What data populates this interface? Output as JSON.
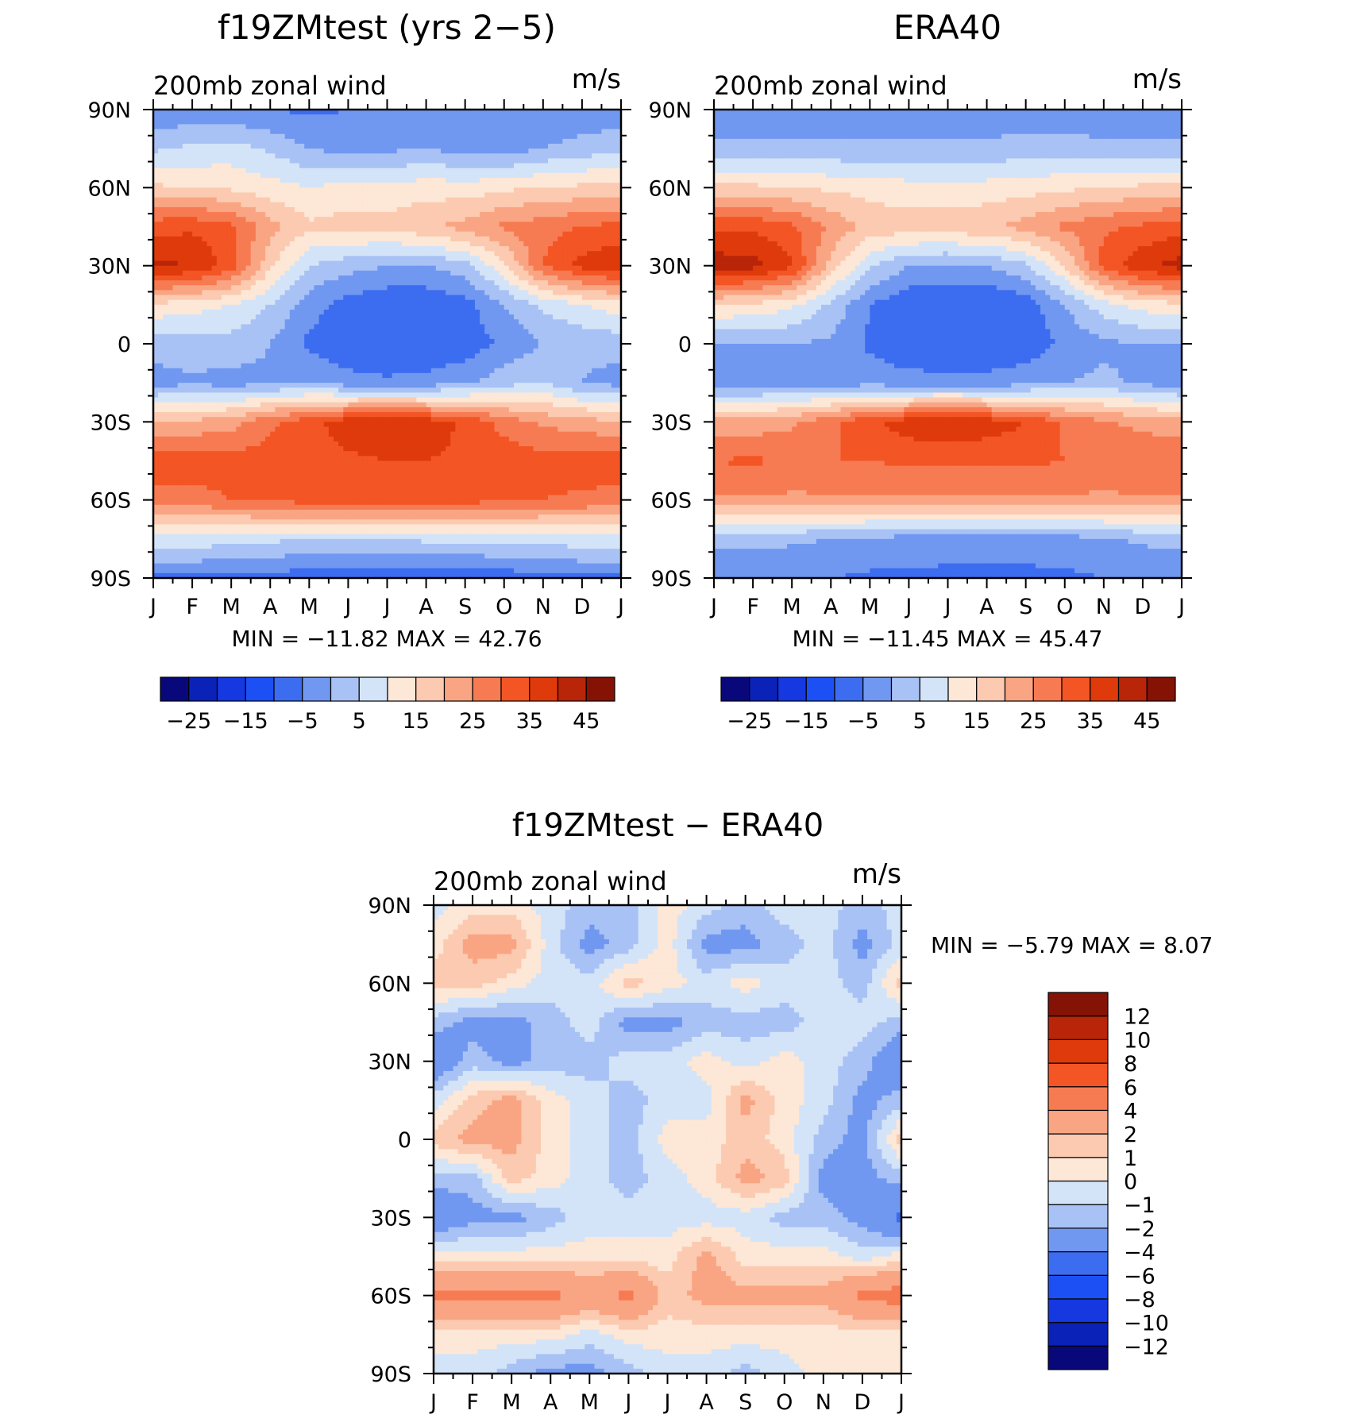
{
  "chart_data": [
    {
      "type": "heatmap",
      "title": "f19ZMtest (yrs 2−5)",
      "left_string": "200mb zonal wind",
      "right_string": "m/s",
      "x_ticks": [
        "J",
        "F",
        "M",
        "A",
        "M",
        "J",
        "J",
        "A",
        "S",
        "O",
        "N",
        "D",
        "J"
      ],
      "y_ticks": [
        "90N",
        "60N",
        "30N",
        "0",
        "30S",
        "60S",
        "90S"
      ],
      "ylim": [
        -90,
        90
      ],
      "stats": {
        "min_label": "MIN =",
        "min": "−11.82",
        "max_label": "MAX =",
        "max": "42.76"
      },
      "colorbar": {
        "orientation": "horizontal",
        "levels": [
          -30,
          -25,
          -20,
          -15,
          -10,
          -5,
          0,
          5,
          10,
          15,
          20,
          25,
          30,
          35,
          40,
          45
        ],
        "tick_labels": [
          "−25",
          "−15",
          "−5",
          "5",
          "15",
          "25",
          "35",
          "45"
        ],
        "colors": [
          "#08087a",
          "#0a22b8",
          "#1538e0",
          "#1c50f5",
          "#3c6cf0",
          "#7198f0",
          "#a9c2f5",
          "#d4e4f8",
          "#fde7d6",
          "#fccab0",
          "#f9a583",
          "#f77b52",
          "#f35524",
          "#df3a0b",
          "#b82508",
          "#841205"
        ]
      },
      "grid_months": [
        "J",
        "F",
        "M",
        "A",
        "M",
        "J",
        "J",
        "A",
        "S",
        "O",
        "N",
        "D",
        "J"
      ],
      "grid_lats": [
        90,
        75,
        60,
        45,
        30,
        15,
        0,
        -15,
        -30,
        -45,
        -60,
        -75,
        -90
      ],
      "z_rows": [
        [
          -4,
          -4,
          -4,
          -5,
          -6,
          -5,
          -5,
          -5,
          -5,
          -4,
          -4,
          -4,
          -4
        ],
        [
          4,
          6,
          7,
          4,
          0,
          -2,
          -1,
          0,
          -2,
          -3,
          0,
          2,
          4
        ],
        [
          16,
          15,
          14,
          12,
          10,
          12,
          11,
          13,
          12,
          14,
          15,
          16,
          16
        ],
        [
          33,
          34,
          31,
          22,
          16,
          17,
          17,
          19,
          22,
          26,
          28,
          30,
          32
        ],
        [
          41,
          40,
          33,
          16,
          5,
          2,
          0,
          0,
          3,
          14,
          30,
          37,
          39
        ],
        [
          14,
          12,
          10,
          5,
          -3,
          -7,
          -9,
          -9,
          -7,
          0,
          6,
          10,
          13
        ],
        [
          2,
          3,
          3,
          0,
          -6,
          -9,
          -10,
          -10,
          -8,
          -4,
          0,
          1,
          2
        ],
        [
          -2,
          -1,
          -2,
          -1,
          0,
          -3,
          -4,
          -3,
          -1,
          3,
          5,
          0,
          -2
        ],
        [
          20,
          21,
          23,
          29,
          33,
          38,
          40,
          38,
          34,
          28,
          24,
          22,
          20
        ],
        [
          33,
          33,
          32,
          32,
          33,
          34,
          35,
          35,
          34,
          33,
          32,
          33,
          33
        ],
        [
          28,
          28,
          30,
          31,
          32,
          32,
          32,
          32,
          32,
          31,
          30,
          29,
          28
        ],
        [
          8,
          8,
          7,
          6,
          5,
          5,
          5,
          6,
          6,
          7,
          7,
          8,
          8
        ],
        [
          -6,
          -6,
          -6,
          -7,
          -8,
          -8,
          -9,
          -9,
          -9,
          -8,
          -7,
          -6,
          -6
        ]
      ]
    },
    {
      "type": "heatmap",
      "title": "ERA40",
      "left_string": "200mb zonal wind",
      "right_string": "m/s",
      "x_ticks": [
        "J",
        "F",
        "M",
        "A",
        "M",
        "J",
        "J",
        "A",
        "S",
        "O",
        "N",
        "D",
        "J"
      ],
      "y_ticks": [
        "90N",
        "60N",
        "30N",
        "0",
        "30S",
        "60S",
        "90S"
      ],
      "ylim": [
        -90,
        90
      ],
      "stats": {
        "min_label": "MIN =",
        "min": "−11.45",
        "max_label": "MAX =",
        "max": "45.47"
      },
      "colorbar": {
        "orientation": "horizontal",
        "levels": [
          -30,
          -25,
          -20,
          -15,
          -10,
          -5,
          0,
          5,
          10,
          15,
          20,
          25,
          30,
          35,
          40,
          45
        ],
        "tick_labels": [
          "−25",
          "−15",
          "−5",
          "5",
          "15",
          "25",
          "35",
          "45"
        ],
        "colors": [
          "#08087a",
          "#0a22b8",
          "#1538e0",
          "#1c50f5",
          "#3c6cf0",
          "#7198f0",
          "#a9c2f5",
          "#d4e4f8",
          "#fde7d6",
          "#fccab0",
          "#f9a583",
          "#f77b52",
          "#f35524",
          "#df3a0b",
          "#b82508",
          "#841205"
        ]
      },
      "grid_months": [
        "J",
        "F",
        "M",
        "A",
        "M",
        "J",
        "J",
        "A",
        "S",
        "O",
        "N",
        "D",
        "J"
      ],
      "grid_lats": [
        90,
        75,
        60,
        45,
        30,
        15,
        0,
        -15,
        -30,
        -45,
        -60,
        -75,
        -90
      ],
      "z_rows": [
        [
          -3,
          -3,
          -3,
          -3,
          -3,
          -3,
          -3,
          -3,
          -3,
          -3,
          -3,
          -3,
          -3
        ],
        [
          1,
          1,
          1,
          1,
          1,
          1,
          1,
          1,
          2,
          2,
          1,
          1,
          1
        ],
        [
          16,
          16,
          15,
          14,
          13,
          12,
          12,
          12,
          13,
          14,
          15,
          16,
          16
        ],
        [
          34,
          34,
          31,
          24,
          18,
          18,
          18,
          19,
          22,
          26,
          29,
          31,
          33
        ],
        [
          43,
          42,
          36,
          18,
          6,
          0,
          -1,
          0,
          4,
          15,
          32,
          39,
          42
        ],
        [
          15,
          14,
          11,
          4,
          -5,
          -9,
          -10,
          -10,
          -8,
          0,
          8,
          12,
          14
        ],
        [
          0,
          0,
          0,
          -1,
          -6,
          -9,
          -10,
          -10,
          -8,
          -4,
          -1,
          0,
          0
        ],
        [
          -3,
          -3,
          -3,
          -3,
          -2,
          -3,
          -3,
          -3,
          -2,
          0,
          1,
          -1,
          -3
        ],
        [
          22,
          22,
          24,
          29,
          34,
          38,
          39,
          38,
          35,
          29,
          26,
          23,
          22
        ],
        [
          30,
          31,
          29,
          30,
          30,
          31,
          31,
          31,
          31,
          30,
          29,
          30,
          30
        ],
        [
          24,
          24,
          24,
          24,
          24,
          24,
          24,
          24,
          24,
          24,
          24,
          24,
          24
        ],
        [
          2,
          2,
          1,
          0,
          -1,
          -2,
          -3,
          -3,
          -3,
          -2,
          -1,
          1,
          2
        ],
        [
          -5,
          -5,
          -5,
          -5,
          -6,
          -6,
          -6,
          -6,
          -6,
          -6,
          -5,
          -5,
          -5
        ]
      ]
    },
    {
      "type": "heatmap",
      "title": "f19ZMtest − ERA40",
      "left_string": "200mb zonal wind",
      "right_string": "m/s",
      "x_ticks": [
        "J",
        "F",
        "M",
        "A",
        "M",
        "J",
        "J",
        "A",
        "S",
        "O",
        "N",
        "D",
        "J"
      ],
      "y_ticks": [
        "90N",
        "60N",
        "30N",
        "0",
        "30S",
        "60S",
        "90S"
      ],
      "ylim": [
        -90,
        90
      ],
      "stats": {
        "min_label": "MIN =",
        "min": "−5.79",
        "max_label": "MAX =",
        "max": "8.07"
      },
      "colorbar": {
        "orientation": "vertical",
        "levels": [
          -14,
          -12,
          -10,
          -8,
          -6,
          -4,
          -2,
          -1,
          0,
          1,
          2,
          4,
          6,
          8,
          10,
          12,
          14
        ],
        "tick_labels": [
          "12",
          "10",
          "8",
          "6",
          "4",
          "2",
          "1",
          "0",
          "−1",
          "−2",
          "−4",
          "−6",
          "−8",
          "−10",
          "−12"
        ],
        "colors": [
          "#08087a",
          "#0a22b8",
          "#1538e0",
          "#1c50f5",
          "#3c6cf0",
          "#7198f0",
          "#a9c2f5",
          "#d4e4f8",
          "#fde7d6",
          "#fccab0",
          "#f9a583",
          "#f77b52",
          "#f35524",
          "#df3a0b",
          "#b82508",
          "#841205"
        ]
      },
      "grid_months": [
        "J",
        "F",
        "M",
        "A",
        "M",
        "J",
        "J",
        "A",
        "S",
        "O",
        "N",
        "D",
        "J"
      ],
      "grid_lats": [
        90,
        75,
        60,
        45,
        30,
        15,
        0,
        -15,
        -30,
        -45,
        -60,
        -75,
        -90
      ],
      "z_rows": [
        [
          -0.5,
          0.5,
          0.5,
          -0.5,
          -1.5,
          -1.5,
          0.5,
          -0.5,
          -1.5,
          -0.5,
          -0.5,
          -1.5,
          -0.5
        ],
        [
          0.5,
          2.5,
          2.5,
          -0.5,
          -2.5,
          -1.5,
          0.5,
          -2.5,
          -2.5,
          -1.5,
          -0.5,
          -2.5,
          -0.5
        ],
        [
          1.5,
          1.5,
          0.5,
          -0.5,
          -0.5,
          1.5,
          0.5,
          -0.5,
          0.5,
          -0.5,
          -0.5,
          -1.5,
          1.5
        ],
        [
          -1.5,
          -2.5,
          -2.5,
          -1.5,
          -0.5,
          -2.5,
          -2.5,
          -1.5,
          -1.5,
          -1.5,
          -0.5,
          -0.5,
          -1.5
        ],
        [
          -3.5,
          -1.5,
          -2.5,
          -1.5,
          -1.5,
          -0.5,
          -0.5,
          0.5,
          -0.5,
          0.5,
          -0.5,
          -1.5,
          -3.5
        ],
        [
          -0.5,
          1.5,
          2.5,
          0.5,
          -0.5,
          -1.5,
          -0.5,
          -0.5,
          2.5,
          0.5,
          -0.5,
          -2.5,
          -1.5
        ],
        [
          1.5,
          2.5,
          2.5,
          0.5,
          -0.5,
          -1.5,
          0.5,
          0.5,
          1.5,
          0.5,
          -1.5,
          -2.5,
          1.5
        ],
        [
          -1.5,
          -1.5,
          1.5,
          0.5,
          -0.5,
          -1.5,
          -0.5,
          0.5,
          2.5,
          1.5,
          -2.5,
          -2.5,
          -1.5
        ],
        [
          -3.5,
          -2.5,
          -2.5,
          -1.5,
          -0.5,
          -0.5,
          -0.5,
          -0.5,
          -0.5,
          -1.5,
          -1.5,
          -2.5,
          -4.5
        ],
        [
          0.5,
          0.5,
          0.5,
          0.5,
          0.5,
          0.5,
          0.5,
          2.5,
          0.5,
          0.5,
          0.5,
          -0.5,
          0.5
        ],
        [
          4.5,
          4.5,
          4.5,
          4.5,
          3.5,
          4.5,
          1.5,
          2.5,
          2.5,
          2.5,
          2.5,
          4.5,
          5
        ],
        [
          0.5,
          0.5,
          0.5,
          0.5,
          -0.5,
          0.5,
          0.5,
          0.5,
          0.5,
          0.5,
          0.5,
          0.5,
          0.5
        ],
        [
          -0.5,
          -0.5,
          -1.5,
          -2.5,
          -2.5,
          -1.5,
          -0.5,
          -0.5,
          -1.5,
          -0.5,
          0.5,
          0.5,
          0.5
        ]
      ]
    }
  ]
}
